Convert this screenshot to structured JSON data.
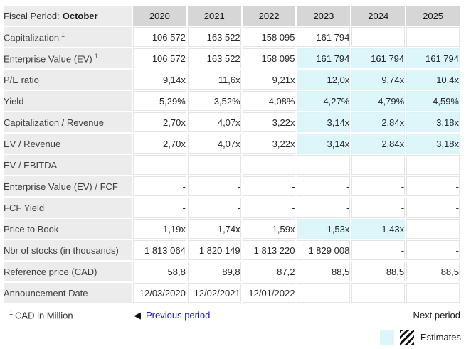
{
  "colors": {
    "header_bg": "#d6d6d6",
    "label_bg": "#ececec",
    "estimate_bg": "#dcf6f9",
    "link_blue": "#1414e0"
  },
  "table": {
    "header": {
      "fiscal_period_label": "Fiscal Period:",
      "fiscal_period_value": "October",
      "years": [
        "2020",
        "2021",
        "2022",
        "2023",
        "2024",
        "2025"
      ]
    },
    "rows": [
      {
        "label": "Capitalization",
        "sup": "1",
        "values": [
          "106 572",
          "163 522",
          "158 095",
          "161 794",
          "-",
          "-"
        ],
        "estimates": [
          false,
          false,
          false,
          false,
          false,
          false
        ]
      },
      {
        "label": "Enterprise Value (EV)",
        "sup": "1",
        "values": [
          "106 572",
          "163 522",
          "158 095",
          "161 794",
          "161 794",
          "161 794"
        ],
        "estimates": [
          false,
          false,
          false,
          true,
          true,
          true
        ]
      },
      {
        "label": "P/E ratio",
        "sup": "",
        "values": [
          "9,14x",
          "11,6x",
          "9,21x",
          "12,0x",
          "9,74x",
          "10,4x"
        ],
        "estimates": [
          false,
          false,
          false,
          true,
          true,
          true
        ]
      },
      {
        "label": "Yield",
        "sup": "",
        "values": [
          "5,29%",
          "3,52%",
          "4,08%",
          "4,27%",
          "4,79%",
          "4,59%"
        ],
        "estimates": [
          false,
          false,
          false,
          true,
          true,
          true
        ]
      },
      {
        "label": "Capitalization / Revenue",
        "sup": "",
        "values": [
          "2,70x",
          "4,07x",
          "3,22x",
          "3,14x",
          "2,84x",
          "3,18x"
        ],
        "estimates": [
          false,
          false,
          false,
          true,
          true,
          true
        ]
      },
      {
        "label": "EV / Revenue",
        "sup": "",
        "values": [
          "2,70x",
          "4,07x",
          "3,22x",
          "3,14x",
          "2,84x",
          "3,18x"
        ],
        "estimates": [
          false,
          false,
          false,
          true,
          true,
          true
        ]
      },
      {
        "label": "EV / EBITDA",
        "sup": "",
        "values": [
          "-",
          "-",
          "-",
          "-",
          "-",
          "-"
        ],
        "estimates": [
          false,
          false,
          false,
          false,
          false,
          false
        ]
      },
      {
        "label": "Enterprise Value (EV) / FCF",
        "sup": "",
        "values": [
          "-",
          "-",
          "-",
          "-",
          "-",
          "-"
        ],
        "estimates": [
          false,
          false,
          false,
          false,
          false,
          false
        ]
      },
      {
        "label": "FCF Yield",
        "sup": "",
        "values": [
          "-",
          "-",
          "-",
          "-",
          "-",
          "-"
        ],
        "estimates": [
          false,
          false,
          false,
          false,
          false,
          false
        ]
      },
      {
        "label": "Price to Book",
        "sup": "",
        "values": [
          "1,19x",
          "1,74x",
          "1,59x",
          "1,53x",
          "1,43x",
          "-"
        ],
        "estimates": [
          false,
          false,
          false,
          true,
          true,
          false
        ]
      },
      {
        "label": "Nbr of stocks (in thousands)",
        "sup": "",
        "values": [
          "1 813 064",
          "1 820 149",
          "1 813 220",
          "1 829 008",
          "-",
          "-"
        ],
        "estimates": [
          false,
          false,
          false,
          false,
          false,
          false
        ]
      },
      {
        "label": "Reference price (CAD)",
        "sup": "",
        "values": [
          "58,8",
          "89,8",
          "87,2",
          "88,5",
          "88,5",
          "88,5"
        ],
        "estimates": [
          false,
          false,
          false,
          false,
          false,
          false
        ]
      },
      {
        "label": "Announcement Date",
        "sup": "",
        "values": [
          "12/03/2020",
          "12/02/2021",
          "12/01/2022",
          "-",
          "-",
          "-"
        ],
        "estimates": [
          false,
          false,
          false,
          false,
          false,
          false
        ]
      }
    ]
  },
  "footer": {
    "footnote_sup": "1",
    "footnote_text": "CAD in Million",
    "previous_arrow": "◀",
    "previous_label": "Previous period",
    "next_label": "Next period",
    "legend_label": "Estimates"
  }
}
